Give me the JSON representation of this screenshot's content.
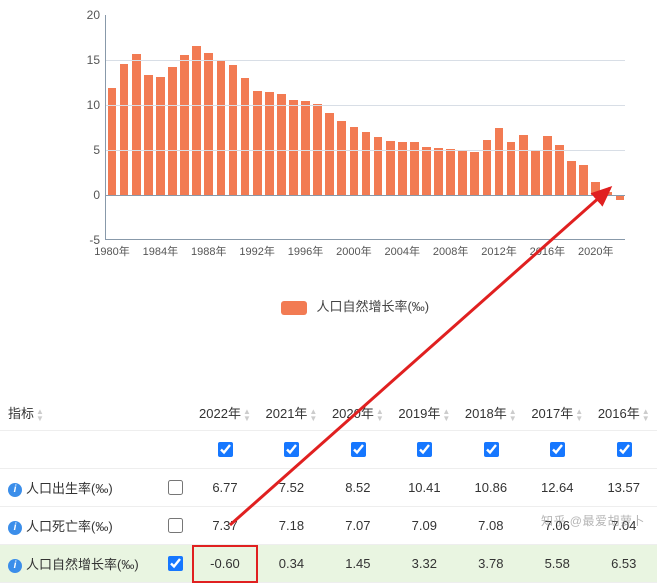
{
  "chart": {
    "type": "bar",
    "legend_label": "人口自然增长率(‰)",
    "bar_color": "#f27b53",
    "grid_color": "#d8dee6",
    "axis_color": "#8899aa",
    "background_color": "#ffffff",
    "ylim": [
      -5,
      20
    ],
    "yticks": [
      -5,
      0,
      5,
      10,
      15,
      20
    ],
    "xrange": [
      1980,
      2022
    ],
    "xtick_years": [
      1980,
      1984,
      1988,
      1992,
      1996,
      2000,
      2004,
      2008,
      2012,
      2016,
      2020
    ],
    "xtick_suffix": "年",
    "bar_width_ratio": 0.72,
    "data": [
      {
        "year": 1980,
        "v": 11.87
      },
      {
        "year": 1981,
        "v": 14.55
      },
      {
        "year": 1982,
        "v": 15.68
      },
      {
        "year": 1983,
        "v": 13.29
      },
      {
        "year": 1984,
        "v": 13.08
      },
      {
        "year": 1985,
        "v": 14.26
      },
      {
        "year": 1986,
        "v": 15.57
      },
      {
        "year": 1987,
        "v": 16.61
      },
      {
        "year": 1988,
        "v": 15.73
      },
      {
        "year": 1989,
        "v": 15.04
      },
      {
        "year": 1990,
        "v": 14.39
      },
      {
        "year": 1991,
        "v": 12.98
      },
      {
        "year": 1992,
        "v": 11.6
      },
      {
        "year": 1993,
        "v": 11.45
      },
      {
        "year": 1994,
        "v": 11.21
      },
      {
        "year": 1995,
        "v": 10.55
      },
      {
        "year": 1996,
        "v": 10.42
      },
      {
        "year": 1997,
        "v": 10.06
      },
      {
        "year": 1998,
        "v": 9.14
      },
      {
        "year": 1999,
        "v": 8.18
      },
      {
        "year": 2000,
        "v": 7.58
      },
      {
        "year": 2001,
        "v": 6.95
      },
      {
        "year": 2002,
        "v": 6.45
      },
      {
        "year": 2003,
        "v": 6.01
      },
      {
        "year": 2004,
        "v": 5.87
      },
      {
        "year": 2005,
        "v": 5.89
      },
      {
        "year": 2006,
        "v": 5.28
      },
      {
        "year": 2007,
        "v": 5.17
      },
      {
        "year": 2008,
        "v": 5.08
      },
      {
        "year": 2009,
        "v": 4.87
      },
      {
        "year": 2010,
        "v": 4.79
      },
      {
        "year": 2011,
        "v": 6.13
      },
      {
        "year": 2012,
        "v": 7.43
      },
      {
        "year": 2013,
        "v": 5.9
      },
      {
        "year": 2014,
        "v": 6.71
      },
      {
        "year": 2015,
        "v": 4.93
      },
      {
        "year": 2016,
        "v": 6.53
      },
      {
        "year": 2017,
        "v": 5.58
      },
      {
        "year": 2018,
        "v": 3.78
      },
      {
        "year": 2019,
        "v": 3.32
      },
      {
        "year": 2020,
        "v": 1.45
      },
      {
        "year": 2021,
        "v": 0.34
      },
      {
        "year": 2022,
        "v": -0.6
      }
    ]
  },
  "table": {
    "header_indicator": "指标",
    "years": [
      "2022年",
      "2021年",
      "2020年",
      "2019年",
      "2018年",
      "2017年",
      "2016年"
    ],
    "checkbox_row": [
      true,
      true,
      true,
      true,
      true,
      true,
      true
    ],
    "rows": [
      {
        "label": "人口出生率(‰)",
        "checked": false,
        "values": [
          "6.77",
          "7.52",
          "8.52",
          "10.41",
          "10.86",
          "12.64",
          "13.57"
        ]
      },
      {
        "label": "人口死亡率(‰)",
        "checked": false,
        "values": [
          "7.37",
          "7.18",
          "7.07",
          "7.09",
          "7.08",
          "7.06",
          "7.04"
        ]
      },
      {
        "label": "人口自然增长率(‰)",
        "checked": true,
        "highlight": true,
        "highlight_cell": 0,
        "values": [
          "-0.60",
          "0.34",
          "1.45",
          "3.32",
          "3.78",
          "5.58",
          "6.53"
        ]
      }
    ],
    "highlight_row_bg": "#e9f5e1",
    "highlight_cell_border": "#e02020"
  },
  "arrow": {
    "color": "#e02020",
    "stroke_width": 3,
    "from": [
      230,
      525
    ],
    "to": [
      610,
      188
    ]
  },
  "watermark": "知乎 @最爱胡萝卜"
}
